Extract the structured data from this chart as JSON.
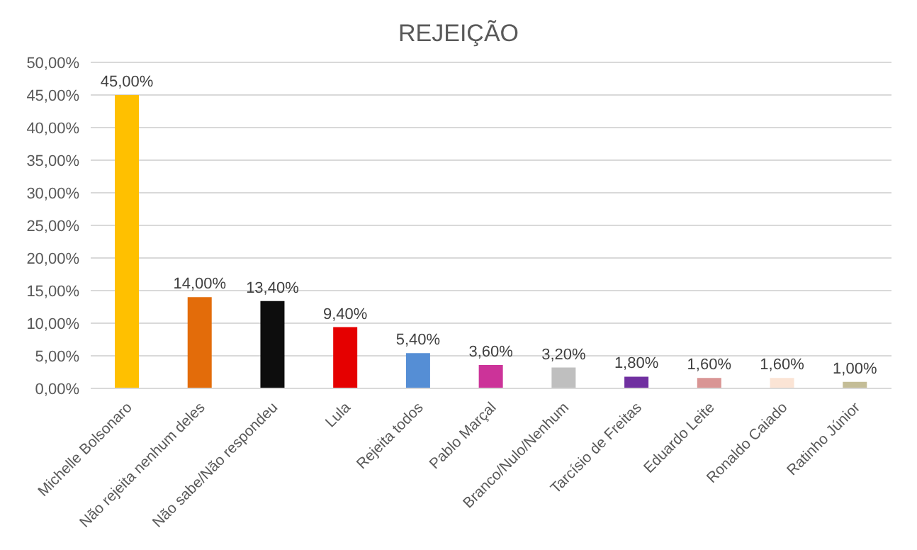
{
  "chart_data": {
    "type": "bar",
    "title": "REJEIÇÃO",
    "categories": [
      "Michelle Bolsonaro",
      "Não rejeita nenhum deles",
      "Não sabe/Não respondeu",
      "Lula",
      "Rejeita todos",
      "Pablo Marçal",
      "Branco/Nulo/Nenhum",
      "Tarcísio de Freitas",
      "Eduardo Leite",
      "Ronaldo Caiado",
      "Ratinho Júnior"
    ],
    "values": [
      45,
      14,
      13.4,
      9.4,
      5.4,
      3.6,
      3.2,
      1.8,
      1.6,
      1.6,
      1
    ],
    "colors": [
      "#ffc000",
      "#e36c0a",
      "#0d0d0d",
      "#e50000",
      "#558ed5",
      "#cc3399",
      "#bfbfbf",
      "#7030a0",
      "#d99594",
      "#fbe4d5",
      "#c4bd97"
    ],
    "value_labels": [
      "45,00%",
      "14,00%",
      "13,40%",
      "9,40%",
      "5,40%",
      "3,60%",
      "3,20%",
      "1,80%",
      "1,60%",
      "1,60%",
      "1,00%"
    ],
    "ylim": [
      0,
      50
    ],
    "yticks": [
      {
        "value": 0,
        "label": "0,00%"
      },
      {
        "value": 5,
        "label": "5,00%"
      },
      {
        "value": 10,
        "label": "10,00%"
      },
      {
        "value": 15,
        "label": "15,00%"
      },
      {
        "value": 20,
        "label": "20,00%"
      },
      {
        "value": 25,
        "label": "25,00%"
      },
      {
        "value": 30,
        "label": "30,00%"
      },
      {
        "value": 35,
        "label": "35,00%"
      },
      {
        "value": 40,
        "label": "40,00%"
      },
      {
        "value": 45,
        "label": "45,00%"
      },
      {
        "value": 50,
        "label": "50,00%"
      }
    ],
    "grid": "y"
  }
}
